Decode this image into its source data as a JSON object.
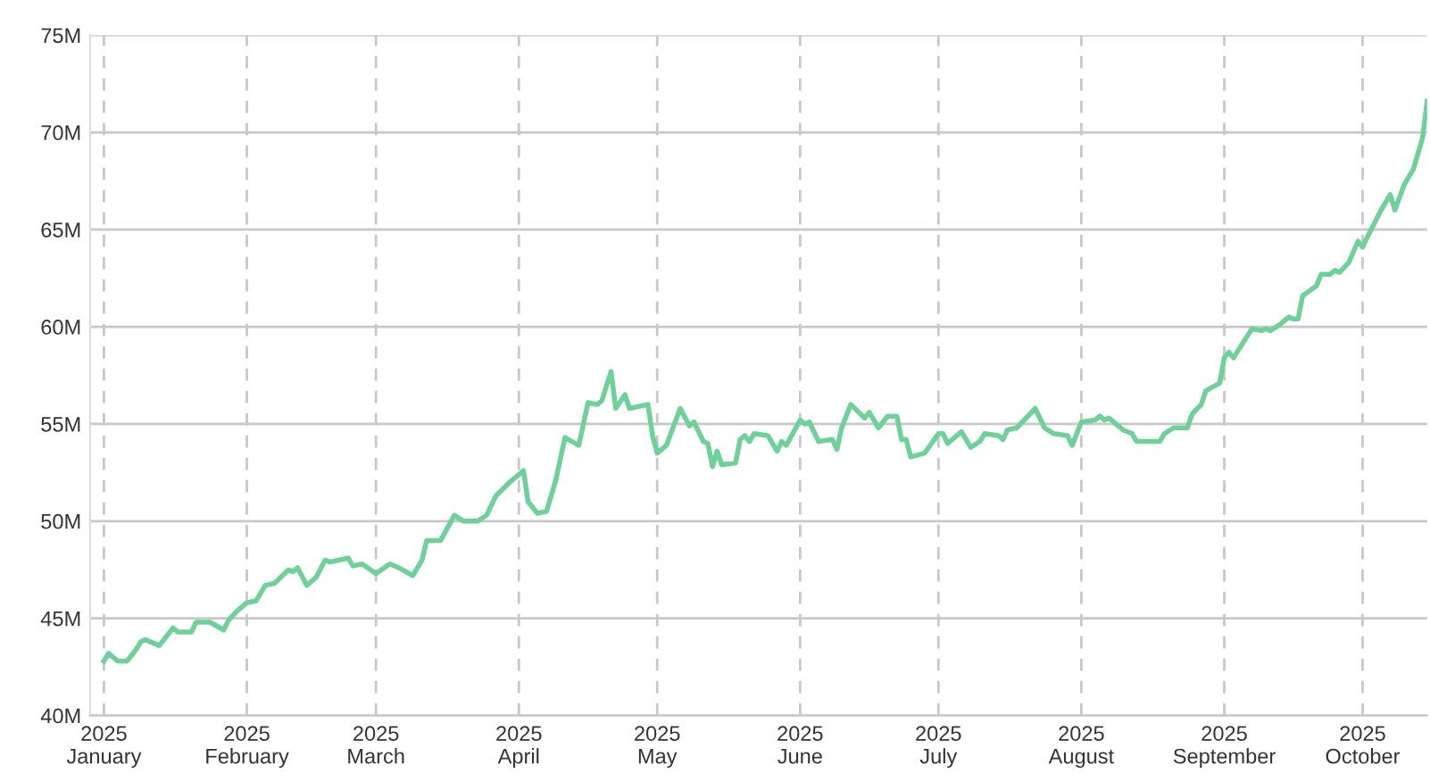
{
  "chart_data": {
    "type": "line",
    "grid": true,
    "legend": false,
    "line_style": "solid",
    "marker": "none",
    "xlim": [
      "2024-12-29",
      "2025-10-15"
    ],
    "xticks": [
      {
        "value": "2025-01-01",
        "label": "2025\nJanuary"
      },
      {
        "value": "2025-02-01",
        "label": "2025\nFebruary"
      },
      {
        "value": "2025-03-01",
        "label": "2025\nMarch"
      },
      {
        "value": "2025-04-01",
        "label": "2025\nApril"
      },
      {
        "value": "2025-05-01",
        "label": "2025\nMay"
      },
      {
        "value": "2025-06-01",
        "label": "2025\nJune"
      },
      {
        "value": "2025-07-01",
        "label": "2025\nJuly"
      },
      {
        "value": "2025-08-01",
        "label": "2025\nAugust"
      },
      {
        "value": "2025-09-01",
        "label": "2025\nSeptember"
      },
      {
        "value": "2025-10-01",
        "label": "2025\nOctober"
      }
    ],
    "ylim": [
      40,
      75
    ],
    "yticks": [
      {
        "value": 40,
        "label": "40M"
      },
      {
        "value": 45,
        "label": "45M"
      },
      {
        "value": 50,
        "label": "50M"
      },
      {
        "value": 55,
        "label": "55M"
      },
      {
        "value": 60,
        "label": "60M"
      },
      {
        "value": 65,
        "label": "65M"
      },
      {
        "value": 70,
        "label": "70M"
      },
      {
        "value": 75,
        "label": "75M"
      }
    ],
    "series": [
      {
        "color": "#6fd19a",
        "x": [
          "2025-01-01",
          "2025-01-02",
          "2025-01-04",
          "2025-01-06",
          "2025-01-08",
          "2025-01-09",
          "2025-01-10",
          "2025-01-13",
          "2025-01-16",
          "2025-01-17",
          "2025-01-20",
          "2025-01-21",
          "2025-01-23",
          "2025-01-24",
          "2025-01-27",
          "2025-01-28",
          "2025-01-30",
          "2025-02-01",
          "2025-02-03",
          "2025-02-05",
          "2025-02-07",
          "2025-02-10",
          "2025-02-11",
          "2025-02-12",
          "2025-02-14",
          "2025-02-16",
          "2025-02-18",
          "2025-02-19",
          "2025-02-23",
          "2025-02-24",
          "2025-02-26",
          "2025-03-01",
          "2025-03-04",
          "2025-03-06",
          "2025-03-09",
          "2025-03-11",
          "2025-03-12",
          "2025-03-15",
          "2025-03-18",
          "2025-03-20",
          "2025-03-23",
          "2025-03-25",
          "2025-03-27",
          "2025-03-30",
          "2025-04-01",
          "2025-04-02",
          "2025-04-03",
          "2025-04-05",
          "2025-04-07",
          "2025-04-09",
          "2025-04-11",
          "2025-04-14",
          "2025-04-16",
          "2025-04-18",
          "2025-04-19",
          "2025-04-21",
          "2025-04-22",
          "2025-04-24",
          "2025-04-25",
          "2025-04-29",
          "2025-04-30",
          "2025-05-01",
          "2025-05-03",
          "2025-05-06",
          "2025-05-08",
          "2025-05-09",
          "2025-05-11",
          "2025-05-12",
          "2025-05-13",
          "2025-05-14",
          "2025-05-15",
          "2025-05-18",
          "2025-05-19",
          "2025-05-20",
          "2025-05-21",
          "2025-05-22",
          "2025-05-25",
          "2025-05-27",
          "2025-05-28",
          "2025-05-29",
          "2025-06-01",
          "2025-06-02",
          "2025-06-03",
          "2025-06-05",
          "2025-06-08",
          "2025-06-09",
          "2025-06-10",
          "2025-06-12",
          "2025-06-15",
          "2025-06-16",
          "2025-06-18",
          "2025-06-20",
          "2025-06-22",
          "2025-06-23",
          "2025-06-24",
          "2025-06-25",
          "2025-06-28",
          "2025-07-01",
          "2025-07-02",
          "2025-07-03",
          "2025-07-06",
          "2025-07-08",
          "2025-07-10",
          "2025-07-11",
          "2025-07-14",
          "2025-07-15",
          "2025-07-16",
          "2025-07-18",
          "2025-07-22",
          "2025-07-24",
          "2025-07-26",
          "2025-07-29",
          "2025-07-30",
          "2025-08-01",
          "2025-08-04",
          "2025-08-05",
          "2025-08-06",
          "2025-08-07",
          "2025-08-10",
          "2025-08-12",
          "2025-08-13",
          "2025-08-17",
          "2025-08-18",
          "2025-08-19",
          "2025-08-21",
          "2025-08-24",
          "2025-08-25",
          "2025-08-27",
          "2025-08-28",
          "2025-08-31",
          "2025-09-01",
          "2025-09-02",
          "2025-09-03",
          "2025-09-07",
          "2025-09-09",
          "2025-09-10",
          "2025-09-11",
          "2025-09-13",
          "2025-09-15",
          "2025-09-16",
          "2025-09-17",
          "2025-09-18",
          "2025-09-21",
          "2025-09-22",
          "2025-09-24",
          "2025-09-25",
          "2025-09-26",
          "2025-09-28",
          "2025-09-30",
          "2025-10-01",
          "2025-10-02",
          "2025-10-05",
          "2025-10-07",
          "2025-10-08",
          "2025-10-10",
          "2025-10-12",
          "2025-10-14",
          "2025-10-15"
        ],
        "values": [
          42.8,
          43.2,
          42.8,
          42.8,
          43.4,
          43.8,
          43.9,
          43.6,
          44.5,
          44.3,
          44.3,
          44.8,
          44.8,
          44.8,
          44.4,
          44.9,
          45.4,
          45.8,
          45.9,
          46.7,
          46.8,
          47.5,
          47.4,
          47.6,
          46.7,
          47.1,
          48.0,
          47.9,
          48.1,
          47.7,
          47.8,
          47.3,
          47.8,
          47.6,
          47.2,
          48.0,
          49.0,
          49.0,
          50.3,
          50.0,
          50.0,
          50.3,
          51.3,
          52.0,
          52.4,
          52.6,
          51.0,
          50.4,
          50.5,
          52.1,
          54.3,
          53.9,
          56.1,
          56.0,
          56.2,
          57.7,
          55.8,
          56.5,
          55.8,
          56.0,
          54.4,
          53.5,
          53.9,
          55.8,
          54.9,
          55.1,
          54.1,
          54.0,
          52.8,
          53.6,
          52.9,
          53.0,
          54.2,
          54.4,
          54.1,
          54.5,
          54.4,
          53.6,
          54.1,
          53.9,
          55.2,
          55.0,
          55.1,
          54.1,
          54.2,
          53.7,
          54.8,
          56.0,
          55.3,
          55.6,
          54.8,
          55.4,
          55.4,
          54.2,
          54.2,
          53.3,
          53.5,
          54.5,
          54.5,
          54.0,
          54.6,
          53.8,
          54.1,
          54.5,
          54.4,
          54.2,
          54.7,
          54.8,
          55.8,
          54.8,
          54.5,
          54.4,
          53.9,
          55.1,
          55.2,
          55.4,
          55.2,
          55.3,
          54.7,
          54.5,
          54.1,
          54.1,
          54.1,
          54.5,
          54.8,
          54.8,
          55.5,
          56.0,
          56.7,
          57.1,
          58.4,
          58.7,
          58.4,
          59.9,
          59.8,
          59.9,
          59.8,
          60.1,
          60.5,
          60.4,
          60.4,
          61.6,
          62.1,
          62.7,
          62.7,
          62.9,
          62.8,
          63.3,
          64.4,
          64.1,
          64.6,
          66.0,
          66.8,
          66.0,
          67.3,
          68.1,
          69.7,
          71.6
        ]
      }
    ]
  }
}
